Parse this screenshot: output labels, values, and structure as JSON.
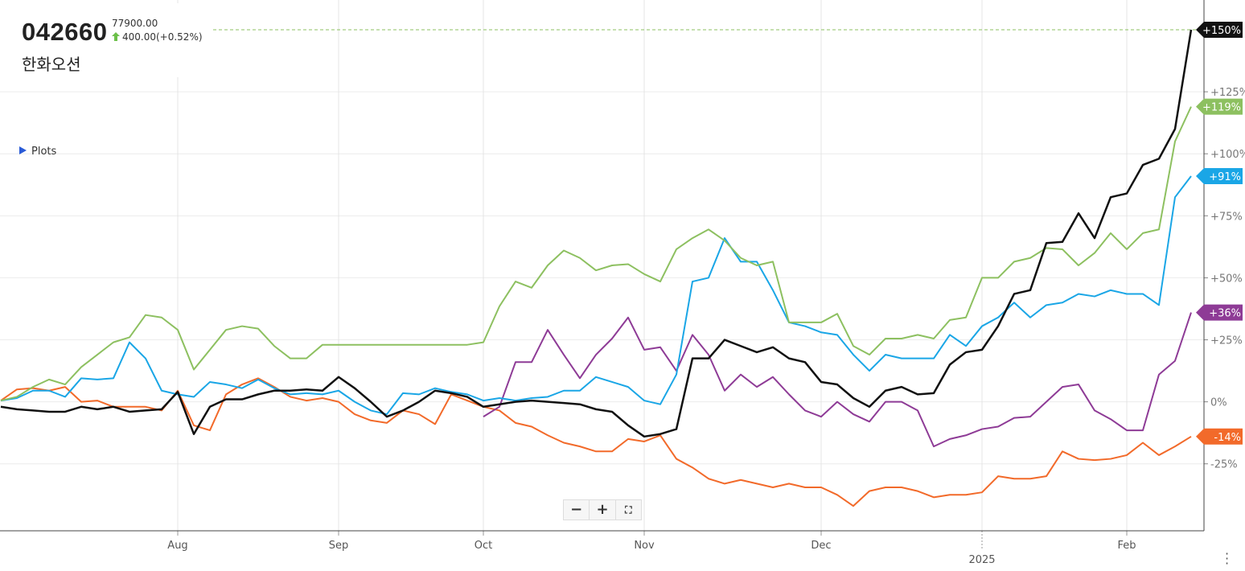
{
  "header": {
    "ticker": "042660",
    "price": "77900.00",
    "change": "400.00(+0.52%)",
    "name": "한화오션",
    "plots": "Plots"
  },
  "chart_data": {
    "type": "line",
    "categories": [
      null,
      null,
      null,
      null,
      null,
      null,
      null,
      null,
      null,
      null,
      null,
      "Aug",
      null,
      null,
      null,
      null,
      null,
      null,
      null,
      null,
      null,
      "Sep",
      null,
      null,
      null,
      null,
      null,
      null,
      null,
      null,
      "Oct",
      null,
      null,
      null,
      null,
      null,
      null,
      null,
      null,
      null,
      "Nov",
      null,
      null,
      null,
      null,
      null,
      null,
      null,
      null,
      null,
      null,
      "Dec",
      null,
      null,
      null,
      null,
      null,
      null,
      null,
      null,
      null,
      "2025",
      null,
      null,
      null,
      null,
      null,
      null,
      null,
      null,
      "Feb",
      null,
      null,
      null,
      null
    ],
    "series": [
      {
        "color": "#111111",
        "last_label": "+150%",
        "values": [
          -2,
          -3,
          -3.5,
          -4,
          -4,
          -2,
          -3,
          -2,
          -4,
          -3.5,
          -3,
          4,
          -13,
          -2,
          1,
          1,
          3,
          4.5,
          4.5,
          5,
          4.5,
          10,
          5.5,
          0,
          -6,
          -3.5,
          0,
          4.5,
          3.5,
          2,
          -2,
          -1,
          0,
          0.5,
          0,
          -0.5,
          -1,
          -3,
          -4,
          -9.5,
          -14,
          -13,
          -11,
          17.5,
          17.5,
          25,
          22.5,
          20,
          22,
          17.5,
          16,
          8,
          7,
          1.5,
          -2,
          4.5,
          6,
          3,
          3.5,
          15,
          20,
          21,
          30.5,
          43.5,
          45,
          64,
          64.5,
          76,
          66,
          82.5,
          84,
          95.5,
          98,
          110,
          150
        ]
      },
      {
        "color": "#8dc060",
        "last_label": "+119%",
        "values": [
          0.5,
          2,
          6,
          9,
          7,
          14,
          19,
          24,
          26,
          35,
          34,
          29,
          13,
          21,
          29,
          30.5,
          29.5,
          22.5,
          17.5,
          17.5,
          23,
          23,
          23,
          23,
          23,
          23,
          23,
          23,
          23,
          23,
          24,
          38.5,
          48.5,
          46,
          55,
          61,
          58,
          53,
          55,
          55.5,
          51.5,
          48.5,
          61.5,
          66,
          69.5,
          65,
          58,
          55,
          56.5,
          32,
          32,
          32,
          35.5,
          22.5,
          19,
          25.5,
          25.5,
          27,
          25.5,
          33,
          34,
          50,
          50,
          56.5,
          58,
          62,
          61.5,
          55,
          60,
          68,
          61.5,
          68,
          69.5,
          105,
          119
        ]
      },
      {
        "color": "#1aa6e6",
        "last_label": "+91%",
        "values": [
          0.5,
          1.5,
          4.5,
          4.5,
          2,
          9.5,
          9,
          9.5,
          24,
          17.5,
          4.5,
          3,
          2,
          8,
          7,
          5.5,
          9,
          5.5,
          3,
          3.5,
          3,
          4.5,
          0,
          -3.5,
          -5,
          3.5,
          3,
          5.5,
          4,
          3,
          0.5,
          1.5,
          0.5,
          1.5,
          2,
          4.5,
          4.5,
          10,
          8,
          6,
          0.5,
          -1,
          11,
          48.5,
          50,
          66,
          56.5,
          56.5,
          45,
          32,
          30.5,
          28,
          27,
          19,
          12.5,
          19,
          17.5,
          17.5,
          17.5,
          27,
          22.5,
          30.5,
          34,
          40,
          34,
          39,
          40,
          43.5,
          42.5,
          45,
          43.5,
          43.5,
          39,
          82.5,
          91
        ]
      },
      {
        "color": "#8e3b96",
        "last_label": "+36%",
        "values": [
          null,
          null,
          null,
          null,
          null,
          null,
          null,
          null,
          null,
          null,
          null,
          null,
          null,
          null,
          null,
          null,
          null,
          null,
          null,
          null,
          null,
          null,
          null,
          null,
          null,
          null,
          null,
          null,
          null,
          null,
          -6,
          -2,
          16,
          16,
          29,
          19,
          9.5,
          19,
          25.5,
          34,
          21,
          22,
          12.5,
          27,
          19,
          4.5,
          11,
          6,
          10,
          3,
          -3.5,
          -6,
          0,
          -5,
          -8,
          0,
          0,
          -3.5,
          -18,
          -15,
          -13.5,
          -11,
          -10,
          -6.5,
          -6,
          0,
          6,
          7,
          -3.5,
          -7,
          -11.5,
          -11.5,
          11,
          16.5,
          36
        ]
      },
      {
        "color": "#f26a2a",
        "last_label": "-14%",
        "values": [
          0.5,
          5,
          5.5,
          4.5,
          6,
          0,
          0.5,
          -2,
          -2,
          -2,
          -3.5,
          4.5,
          -9.5,
          -11.5,
          3,
          7,
          9.5,
          6,
          2,
          0.5,
          1.5,
          0,
          -5,
          -7.5,
          -8.5,
          -3.5,
          -5,
          -9,
          3,
          0.5,
          -2,
          -3.5,
          -8.5,
          -10,
          -13.5,
          -16.5,
          -18,
          -20,
          -20,
          -15,
          -16,
          -13.5,
          -23,
          -26.5,
          -31,
          -33,
          -31.5,
          -33,
          -34.5,
          -33,
          -34.5,
          -34.5,
          -37.5,
          -42,
          -36,
          -34.5,
          -34.5,
          -36,
          -38.5,
          -37.5,
          -37.5,
          -36.5,
          -30,
          -31,
          -31,
          -30,
          -20,
          -23,
          -23.5,
          -23,
          -21.5,
          -16.5,
          -21.5,
          -18,
          -14
        ]
      }
    ],
    "ylim": [
      -52,
      162
    ],
    "yticks": [
      {
        "value": -25,
        "label": "-25%"
      },
      {
        "value": 0,
        "label": "0%"
      },
      {
        "value": 25,
        "label": "+25%"
      },
      {
        "value": 50,
        "label": "+50%"
      },
      {
        "value": 75,
        "label": "+75%"
      },
      {
        "value": 100,
        "label": "+100%"
      },
      {
        "value": 125,
        "label": "+125%"
      }
    ],
    "grid": true
  }
}
